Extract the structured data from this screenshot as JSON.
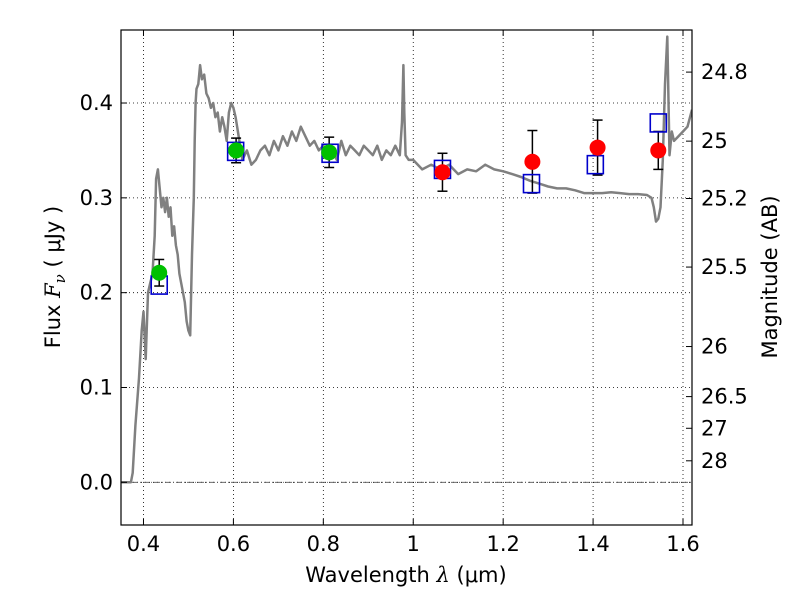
{
  "chart_data": {
    "type": "scatter",
    "xlabel": {
      "prefix": "Wavelength  ",
      "symbol": "λ",
      "unit": " (μm)"
    },
    "ylabel": {
      "prefix": "Flux  ",
      "symbol": "F",
      "subscript": "ν",
      "unit": "  ( μJy )"
    },
    "ylabel_right": "Magnitude (AB)",
    "xlim": [
      0.35,
      1.62
    ],
    "ylim": [
      -0.045,
      0.477
    ],
    "grid": true,
    "x_ticks": [
      0.4,
      0.6,
      0.8,
      1.0,
      1.2,
      1.4,
      1.6
    ],
    "x_tick_labels": [
      "0.4",
      "0.6",
      "0.8",
      "1",
      "1.2",
      "1.4",
      "1.6"
    ],
    "y_ticks": [
      0.0,
      0.1,
      0.2,
      0.3,
      0.4
    ],
    "y_tick_labels": [
      "0.0",
      "0.1",
      "0.2",
      "0.3",
      "0.4"
    ],
    "right_ticks": [
      {
        "label": "24.8",
        "flux": 0.4326
      },
      {
        "label": "25",
        "flux": 0.3598
      },
      {
        "label": "25.2",
        "flux": 0.2993
      },
      {
        "label": "25.5",
        "flux": 0.227
      },
      {
        "label": "26",
        "flux": 0.1432
      },
      {
        "label": "26.5",
        "flux": 0.0904
      },
      {
        "label": "27",
        "flux": 0.057
      },
      {
        "label": "28",
        "flux": 0.0227
      }
    ],
    "colors": {
      "template": "#808080",
      "green_points": "#00c000",
      "red_points": "#ff0000",
      "model_squares": "#0000cc",
      "error_bars": "#000000"
    },
    "series": [
      {
        "kind": "template_spectrum",
        "x": [
          0.35,
          0.365,
          0.372,
          0.376,
          0.382,
          0.39,
          0.396,
          0.4,
          0.405,
          0.41,
          0.415,
          0.42,
          0.425,
          0.428,
          0.432,
          0.436,
          0.44,
          0.444,
          0.448,
          0.452,
          0.456,
          0.46,
          0.464,
          0.468,
          0.472,
          0.476,
          0.48,
          0.484,
          0.488,
          0.492,
          0.496,
          0.5,
          0.504,
          0.508,
          0.512,
          0.514,
          0.516,
          0.518,
          0.522,
          0.526,
          0.53,
          0.535,
          0.54,
          0.545,
          0.55,
          0.555,
          0.56,
          0.565,
          0.57,
          0.575,
          0.58,
          0.585,
          0.59,
          0.595,
          0.6,
          0.605,
          0.61,
          0.615,
          0.62,
          0.63,
          0.64,
          0.65,
          0.66,
          0.67,
          0.68,
          0.69,
          0.7,
          0.71,
          0.72,
          0.73,
          0.74,
          0.75,
          0.76,
          0.77,
          0.78,
          0.79,
          0.8,
          0.81,
          0.82,
          0.83,
          0.84,
          0.85,
          0.86,
          0.87,
          0.88,
          0.89,
          0.9,
          0.91,
          0.92,
          0.93,
          0.94,
          0.95,
          0.96,
          0.97,
          0.975,
          0.978,
          0.98,
          0.983,
          0.99,
          1.0,
          1.02,
          1.04,
          1.06,
          1.08,
          1.1,
          1.12,
          1.14,
          1.16,
          1.18,
          1.2,
          1.22,
          1.24,
          1.26,
          1.28,
          1.3,
          1.32,
          1.34,
          1.36,
          1.38,
          1.4,
          1.42,
          1.44,
          1.46,
          1.48,
          1.5,
          1.52,
          1.53,
          1.535,
          1.54,
          1.545,
          1.55,
          1.555,
          1.56,
          1.565,
          1.57,
          1.575,
          1.58,
          1.59,
          1.6,
          1.61,
          1.62
        ],
        "y": [
          0.0,
          0.0,
          0.0,
          0.01,
          0.06,
          0.11,
          0.16,
          0.18,
          0.13,
          0.2,
          0.21,
          0.22,
          0.26,
          0.32,
          0.33,
          0.31,
          0.29,
          0.3,
          0.285,
          0.3,
          0.28,
          0.29,
          0.26,
          0.27,
          0.25,
          0.24,
          0.22,
          0.21,
          0.2,
          0.19,
          0.17,
          0.16,
          0.155,
          0.24,
          0.3,
          0.36,
          0.4,
          0.415,
          0.42,
          0.44,
          0.425,
          0.43,
          0.41,
          0.405,
          0.395,
          0.4,
          0.385,
          0.39,
          0.37,
          0.385,
          0.375,
          0.36,
          0.39,
          0.4,
          0.395,
          0.385,
          0.37,
          0.355,
          0.34,
          0.35,
          0.335,
          0.34,
          0.35,
          0.355,
          0.345,
          0.36,
          0.35,
          0.365,
          0.355,
          0.37,
          0.36,
          0.375,
          0.365,
          0.355,
          0.36,
          0.35,
          0.355,
          0.345,
          0.35,
          0.34,
          0.36,
          0.345,
          0.355,
          0.35,
          0.345,
          0.355,
          0.35,
          0.345,
          0.355,
          0.34,
          0.35,
          0.345,
          0.355,
          0.345,
          0.38,
          0.44,
          0.39,
          0.345,
          0.34,
          0.34,
          0.33,
          0.335,
          0.33,
          0.335,
          0.325,
          0.33,
          0.328,
          0.335,
          0.33,
          0.328,
          0.325,
          0.322,
          0.318,
          0.315,
          0.312,
          0.31,
          0.31,
          0.308,
          0.305,
          0.305,
          0.305,
          0.306,
          0.305,
          0.304,
          0.304,
          0.303,
          0.3,
          0.29,
          0.275,
          0.278,
          0.29,
          0.34,
          0.42,
          0.47,
          0.345,
          0.37,
          0.36,
          0.365,
          0.37,
          0.375,
          0.393
        ]
      },
      {
        "kind": "observed_green",
        "x": [
          0.435,
          0.606,
          0.813
        ],
        "y": [
          0.221,
          0.35,
          0.348
        ],
        "err": [
          0.014,
          0.013,
          0.016
        ]
      },
      {
        "kind": "observed_red",
        "x": [
          1.065,
          1.265,
          1.41,
          1.545
        ],
        "y": [
          0.327,
          0.338,
          0.353,
          0.35
        ],
        "err": [
          0.02,
          0.033,
          0.029,
          0.02
        ]
      },
      {
        "kind": "model_squares",
        "x": [
          0.435,
          0.605,
          0.815,
          1.065,
          1.263,
          1.405,
          1.545
        ],
        "y": [
          0.208,
          0.349,
          0.347,
          0.33,
          0.315,
          0.335,
          0.379
        ]
      }
    ]
  }
}
